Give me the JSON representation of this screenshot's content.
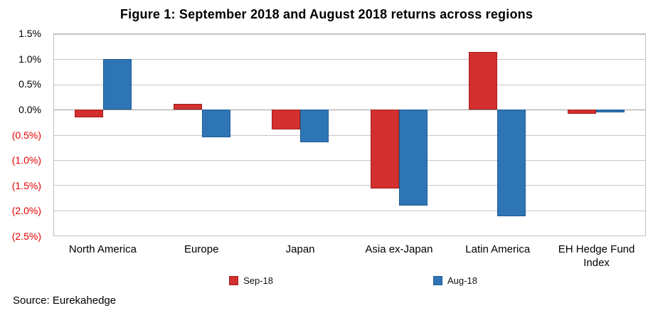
{
  "chart_data": {
    "type": "bar",
    "title": "Figure 1: September 2018 and August 2018 returns across regions",
    "categories": [
      "North America",
      "Europe",
      "Japan",
      "Asia ex-Japan",
      "Latin America",
      "EH Hedge Fund Index"
    ],
    "series": [
      {
        "name": "Sep-18",
        "color": "#d32f2f",
        "border": "#a32020",
        "values": [
          -0.15,
          0.12,
          -0.4,
          -1.57,
          1.15,
          -0.08
        ]
      },
      {
        "name": "Aug-18",
        "color": "#2e75b6",
        "border": "#1f5c94",
        "values": [
          1.0,
          -0.55,
          -0.65,
          -1.9,
          -2.12,
          -0.06
        ]
      }
    ],
    "ylim": [
      -2.5,
      1.5
    ],
    "yticks": [
      {
        "v": 1.5,
        "label": "1.5%"
      },
      {
        "v": 1.0,
        "label": "1.0%"
      },
      {
        "v": 0.5,
        "label": "0.5%"
      },
      {
        "v": 0.0,
        "label": "0.0%"
      },
      {
        "v": -0.5,
        "label": "(0.5%)"
      },
      {
        "v": -1.0,
        "label": "(1.0%)"
      },
      {
        "v": -1.5,
        "label": "(1.5%)"
      },
      {
        "v": -2.0,
        "label": "(2.0%)"
      },
      {
        "v": -2.5,
        "label": "(2.5%)"
      }
    ],
    "grid": true,
    "legend_position": "bottom",
    "negative_tick_color": "#e80000",
    "source": "Source: Eurekahedge"
  }
}
